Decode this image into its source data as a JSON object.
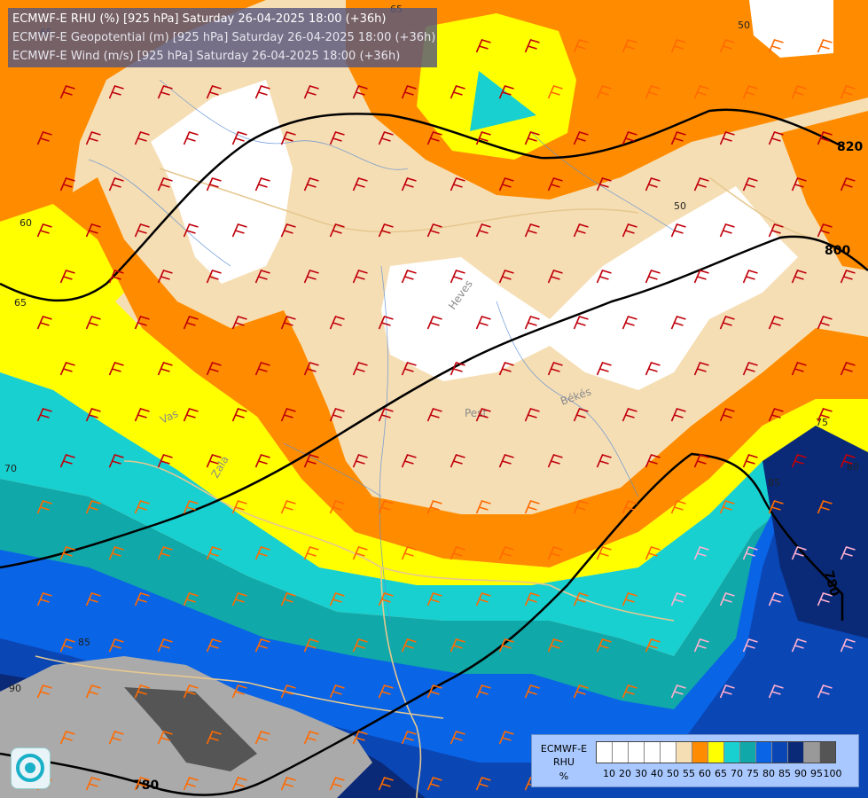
{
  "header": {
    "line1": "ECMWF-E RHU (%) [925 hPa] Saturday 26-04-2025 18:00 (+36h)",
    "line2": "ECMWF-E Geopotential (m) [925 hPa] Saturday 26-04-2025 18:00 (+36h)",
    "line3": "ECMWF-E Wind (m/s) [925 hPa] Saturday 26-04-2025 18:00 (+36h)"
  },
  "legend": {
    "model": "ECMWF-E",
    "variable": "RHU",
    "unit": "%",
    "colors": [
      "#ffffff",
      "#ffffff",
      "#ffffff",
      "#ffffff",
      "#ffffff",
      "#f6deb4",
      "#ff8c00",
      "#ffff00",
      "#18d0d0",
      "#10a8a8",
      "#0a64e6",
      "#0a46b4",
      "#0a2a78",
      "#999999",
      "#555555"
    ],
    "ticks": [
      "10",
      "20",
      "30",
      "40",
      "50",
      "55",
      "60",
      "65",
      "70",
      "75",
      "80",
      "85",
      "90",
      "95",
      "100"
    ]
  },
  "geopotential_contours": [
    "820",
    "800",
    "780",
    "780"
  ],
  "rhu_contour_labels": [
    "65",
    "60",
    "65",
    "70",
    "75",
    "80",
    "85",
    "90",
    "85",
    "50",
    "50",
    "65"
  ],
  "place_labels": [
    "Heves",
    "Pest",
    "Békés",
    "Vas",
    "Zala"
  ],
  "map_colors": {
    "orange": "#ff8c00",
    "beige": "#f6deb4",
    "yellow": "#ffff00",
    "cyan": "#18d0d0",
    "teal": "#10a8a8",
    "blue": "#0a64e6",
    "darkblue": "#0a46b4",
    "navy": "#0a2a78",
    "grey": "#aaaaaa",
    "darkgrey": "#555555",
    "barb_red": "#c0000a",
    "barb_orange": "#ff6a00",
    "barb_pink": "#ffb0d0",
    "border": "#e6c890"
  },
  "icons": [
    "logo-icon"
  ]
}
